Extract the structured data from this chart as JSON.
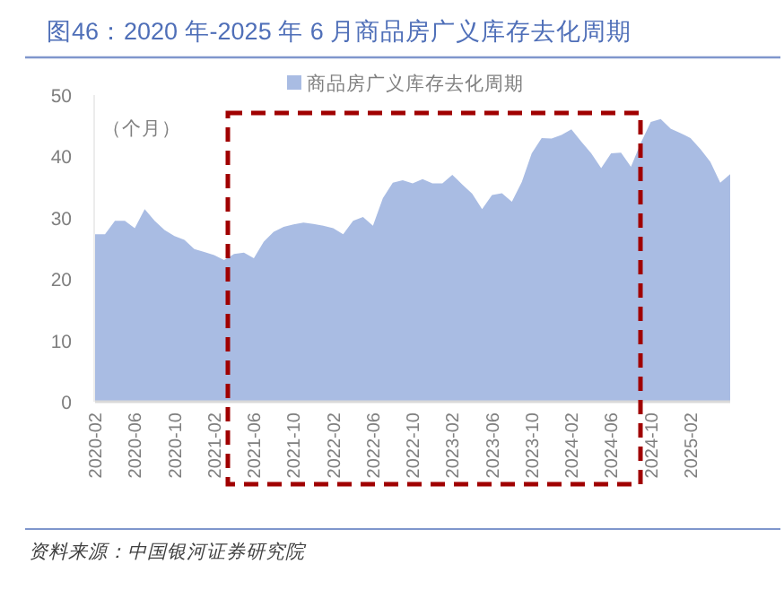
{
  "chart_data": {
    "type": "area",
    "title": "图46：2020 年-2025 年 6 月商品房广义库存去化周期",
    "ylabel": "（个月）",
    "annotations": [
      "资料来源：中国银河证券研究院"
    ],
    "x": [
      "2020-02",
      "2020-03",
      "2020-04",
      "2020-05",
      "2020-06",
      "2020-07",
      "2020-08",
      "2020-09",
      "2020-10",
      "2020-11",
      "2020-12",
      "2021-01",
      "2021-02",
      "2021-03",
      "2021-04",
      "2021-05",
      "2021-06",
      "2021-07",
      "2021-08",
      "2021-09",
      "2021-10",
      "2021-11",
      "2021-12",
      "2022-01",
      "2022-02",
      "2022-03",
      "2022-04",
      "2022-05",
      "2022-06",
      "2022-07",
      "2022-08",
      "2022-09",
      "2022-10",
      "2022-11",
      "2022-12",
      "2023-01",
      "2023-02",
      "2023-03",
      "2023-04",
      "2023-05",
      "2023-06",
      "2023-07",
      "2023-08",
      "2023-09",
      "2023-10",
      "2023-11",
      "2023-12",
      "2024-01",
      "2024-02",
      "2024-03",
      "2024-04",
      "2024-05",
      "2024-06",
      "2024-07",
      "2024-08",
      "2024-09",
      "2024-10",
      "2024-11",
      "2024-12",
      "2025-01",
      "2025-02",
      "2025-03",
      "2025-04",
      "2025-05",
      "2025-06"
    ],
    "series": [
      {
        "name": "商品房广义库存去化周期",
        "color": "#a9bce3",
        "values": [
          27.3,
          27.3,
          29.5,
          29.5,
          28.3,
          31.4,
          29.5,
          28,
          27,
          26.4,
          24.9,
          24.4,
          23.9,
          23.1,
          24.1,
          24.3,
          23.4,
          26.1,
          27.7,
          28.5,
          28.9,
          29.2,
          29,
          28.7,
          28.3,
          27.3,
          29.5,
          30.1,
          28.7,
          33.2,
          35.7,
          36.1,
          35.6,
          36.3,
          35.6,
          35.6,
          37,
          35.4,
          33.9,
          31.4,
          33.7,
          34,
          32.6,
          35.8,
          40.5,
          43,
          42.9,
          43.5,
          44.4,
          42.4,
          40.5,
          38.1,
          40.5,
          40.6,
          38.3,
          42.2,
          45.6,
          46.1,
          44.5,
          43.8,
          43,
          41.2,
          39.1,
          35.7,
          37.1
        ]
      }
    ],
    "xlim": [
      "2020-02",
      "2025-06"
    ],
    "xticks": [
      "2020-02",
      "2020-06",
      "2020-10",
      "2021-02",
      "2021-06",
      "2021-10",
      "2022-02",
      "2022-06",
      "2022-10",
      "2023-02",
      "2023-06",
      "2023-10",
      "2024-02",
      "2024-06",
      "2024-10",
      "2025-02"
    ],
    "ylim": [
      0,
      50
    ],
    "yticks": [
      0,
      10,
      20,
      30,
      40,
      50
    ],
    "grid": false,
    "legend": "top"
  }
}
